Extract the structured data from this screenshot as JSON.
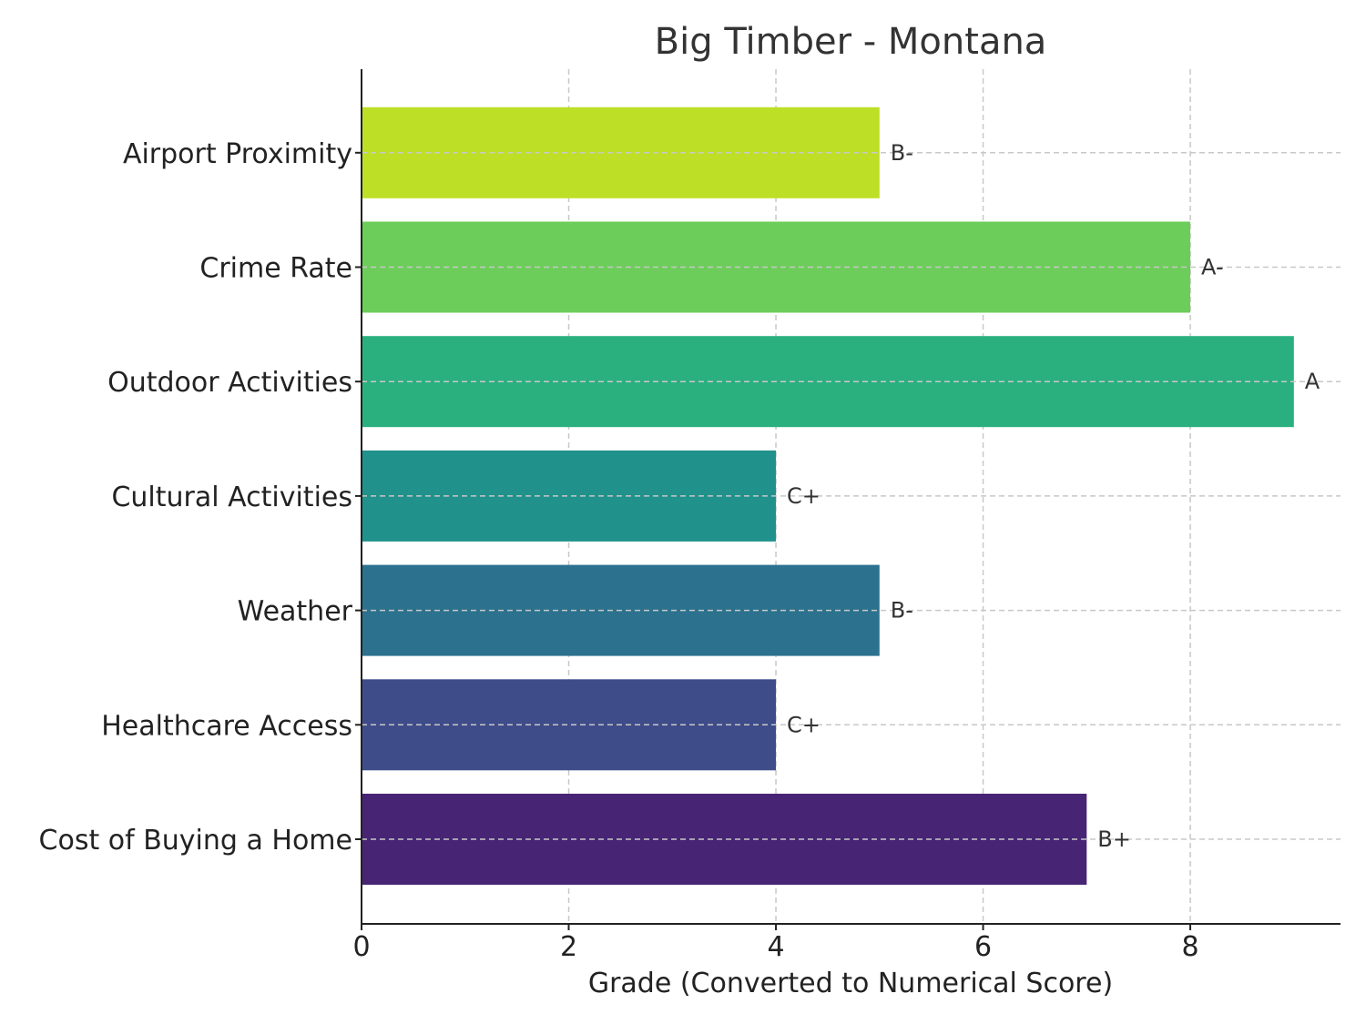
{
  "chart_data": {
    "type": "bar",
    "orientation": "horizontal",
    "title": "Big Timber - Montana",
    "xlabel": "Grade (Converted to Numerical Score)",
    "ylabel": "",
    "xlim": [
      0,
      9.45
    ],
    "xticks": [
      0,
      2,
      4,
      6,
      8
    ],
    "grid": true,
    "categories": [
      "Cost of Buying a Home",
      "Healthcare Access",
      "Weather",
      "Cultural Activities",
      "Outdoor Activities",
      "Crime Rate",
      "Airport Proximity"
    ],
    "values": [
      7,
      4,
      5,
      4,
      9,
      8,
      5
    ],
    "labels": [
      "B+",
      "C+",
      "B-",
      "C+",
      "A",
      "A-",
      "B-"
    ],
    "colors": [
      "#482475",
      "#3e4c8a",
      "#2c718e",
      "#21918c",
      "#2ab07f",
      "#6ccd5a",
      "#bddf26"
    ]
  }
}
